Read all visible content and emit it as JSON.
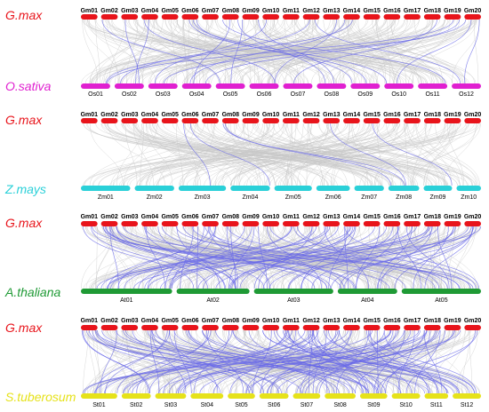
{
  "colors": {
    "gmax": "#e8141b",
    "osativa": "#e020d0",
    "zmays": "#2ad0d8",
    "athaliana": "#1f9a35",
    "stuberosum": "#e6e21a",
    "background_link": "#c8c8c8",
    "highlight_link": "#6a6ae8"
  },
  "panels": [
    {
      "top_species": "G.max",
      "bottom_species": "O.sativa",
      "top_chromosomes": [
        "Gm01",
        "Gm02",
        "Gm03",
        "Gm04",
        "Gm05",
        "Gm06",
        "Gm07",
        "Gm08",
        "Gm09",
        "Gm10",
        "Gm11",
        "Gm12",
        "Gm13",
        "Gm14",
        "Gm15",
        "Gm16",
        "Gm17",
        "Gm18",
        "Gm19",
        "Gm20"
      ],
      "bottom_chromosomes": [
        "Os01",
        "Os02",
        "Os03",
        "Os04",
        "Os05",
        "Os06",
        "Os07",
        "Os08",
        "Os09",
        "Os10",
        "Os11",
        "Os12"
      ]
    },
    {
      "top_species": "G.max",
      "bottom_species": "Z.mays",
      "top_chromosomes": [
        "Gm01",
        "Gm02",
        "Gm03",
        "Gm04",
        "Gm05",
        "Gm06",
        "Gm07",
        "Gm08",
        "Gm09",
        "Gm10",
        "Gm11",
        "Gm12",
        "Gm13",
        "Gm14",
        "Gm15",
        "Gm16",
        "Gm17",
        "Gm18",
        "Gm19",
        "Gm20"
      ],
      "bottom_chromosomes": [
        "Zm01",
        "Zm02",
        "Zm03",
        "Zm04",
        "Zm05",
        "Zm06",
        "Zm07",
        "Zm08",
        "Zm09",
        "Zm10"
      ]
    },
    {
      "top_species": "G.max",
      "bottom_species": "A.thaliana",
      "top_chromosomes": [
        "Gm01",
        "Gm02",
        "Gm03",
        "Gm04",
        "Gm05",
        "Gm06",
        "Gm07",
        "Gm08",
        "Gm09",
        "Gm10",
        "Gm11",
        "Gm12",
        "Gm13",
        "Gm14",
        "Gm15",
        "Gm16",
        "Gm17",
        "Gm18",
        "Gm19",
        "Gm20"
      ],
      "bottom_chromosomes": [
        "At01",
        "At02",
        "At03",
        "At04",
        "At05"
      ]
    },
    {
      "top_species": "G.max",
      "bottom_species": "S.tuberosum",
      "top_chromosomes": [
        "Gm01",
        "Gm02",
        "Gm03",
        "Gm04",
        "Gm05",
        "Gm06",
        "Gm07",
        "Gm08",
        "Gm09",
        "Gm10",
        "Gm11",
        "Gm12",
        "Gm13",
        "Gm14",
        "Gm15",
        "Gm16",
        "Gm17",
        "Gm18",
        "Gm19",
        "Gm20"
      ],
      "bottom_chromosomes": [
        "St01",
        "St02",
        "St03",
        "St04",
        "St05",
        "St06",
        "St07",
        "St08",
        "St09",
        "St10",
        "St11",
        "St12"
      ]
    }
  ]
}
